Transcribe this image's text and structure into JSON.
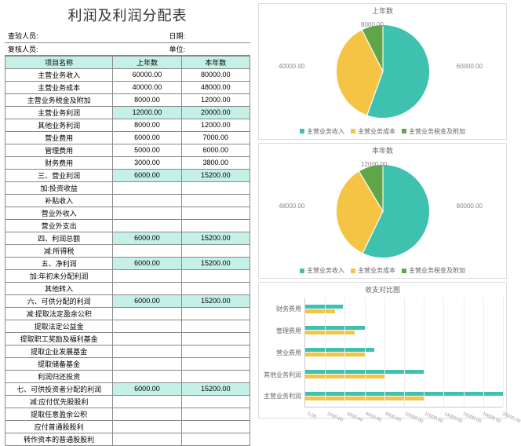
{
  "title": "利润及利润分配表",
  "meta": {
    "inspector_label": "查验人员:",
    "date_label": "日期:",
    "reviewer_label": "复核人员:",
    "unit_label": "单位:"
  },
  "columns": {
    "name": "项目名称",
    "prev": "上年数",
    "curr": "本年数"
  },
  "rows": [
    {
      "label": "主营业务收入",
      "prev": "60000.00",
      "curr": "80000.00"
    },
    {
      "label": "主营业务成本",
      "prev": "40000.00",
      "curr": "48000.00"
    },
    {
      "label": "主营业务税金及附加",
      "prev": "8000.00",
      "curr": "12000.00"
    },
    {
      "label": "主营业务利润",
      "prev": "12000.00",
      "curr": "20000.00",
      "hl": true
    },
    {
      "label": "其他业务利润",
      "prev": "8000.00",
      "curr": "12000.00"
    },
    {
      "label": "营业费用",
      "prev": "6000.00",
      "curr": "7000.00"
    },
    {
      "label": "管理费用",
      "prev": "5000.00",
      "curr": "6000.00"
    },
    {
      "label": "财务费用",
      "prev": "3000.00",
      "curr": "3800.00"
    },
    {
      "label": "三、营业利润",
      "prev": "6000.00",
      "curr": "15200.00",
      "hl": true
    },
    {
      "label": "加:投资收益",
      "prev": "",
      "curr": ""
    },
    {
      "label": "补贴收入",
      "prev": "",
      "curr": ""
    },
    {
      "label": "营业外收入",
      "prev": "",
      "curr": ""
    },
    {
      "label": "营业外支出",
      "prev": "",
      "curr": ""
    },
    {
      "label": "四、利润总额",
      "prev": "6000.00",
      "curr": "15200.00",
      "hl": true
    },
    {
      "label": "减:所得税",
      "prev": "",
      "curr": ""
    },
    {
      "label": "五、净利润",
      "prev": "6000.00",
      "curr": "15200.00",
      "hl": true
    },
    {
      "label": "加:年初未分配利润",
      "prev": "",
      "curr": ""
    },
    {
      "label": "其他转入",
      "prev": "",
      "curr": ""
    },
    {
      "label": "六、可供分配的利润",
      "prev": "6000.00",
      "curr": "15200.00",
      "hl": true
    },
    {
      "label": "减:提取法定盈余公积",
      "prev": "",
      "curr": ""
    },
    {
      "label": "提取法定公益金",
      "prev": "",
      "curr": ""
    },
    {
      "label": "提取职工奖励及福利基金",
      "prev": "",
      "curr": ""
    },
    {
      "label": "提取企业发展基金",
      "prev": "",
      "curr": ""
    },
    {
      "label": "提取储备基金",
      "prev": "",
      "curr": ""
    },
    {
      "label": "利润归还投资",
      "prev": "",
      "curr": ""
    },
    {
      "label": "七、可供投资者分配的利润",
      "prev": "6000.00",
      "curr": "15200.00",
      "hl": true
    },
    {
      "label": "减:应付优先股股利",
      "prev": "",
      "curr": ""
    },
    {
      "label": "提取任意盈余公积",
      "prev": "",
      "curr": ""
    },
    {
      "label": "应付普通股股利",
      "prev": "",
      "curr": ""
    },
    {
      "label": "转作资本的普通股股利",
      "prev": "",
      "curr": ""
    }
  ],
  "colors": {
    "c1": "#3fc1b0",
    "c2": "#f5c444",
    "c3": "#5fa648",
    "highlight": "#c5f0e8",
    "border": "#888888"
  },
  "pie_legend": [
    "主营业务收入",
    "主营业务成本",
    "主营业务税金及附加"
  ],
  "pie1": {
    "title": "上年数",
    "values": [
      60000,
      40000,
      8000
    ],
    "callouts": [
      "60000.00",
      "40000.00",
      "8000.00"
    ]
  },
  "pie2": {
    "title": "本年数",
    "values": [
      80000,
      48000,
      12000
    ],
    "callouts": [
      "80000.00",
      "48000.00",
      "12000.00"
    ]
  },
  "bar": {
    "title": "收支对比图",
    "max": 20000,
    "categories": [
      "财务费用",
      "管理费用",
      "营业费用",
      "其他业务利润",
      "主营业务利润"
    ],
    "series": [
      {
        "color": "#3fc1b0",
        "values": [
          3800,
          6000,
          7000,
          12000,
          20000
        ]
      },
      {
        "color": "#f5c444",
        "values": [
          3000,
          5000,
          6000,
          8000,
          12000
        ]
      }
    ],
    "xticks": [
      "0.00",
      "2000.00",
      "4000.00",
      "6000.00",
      "8000.00",
      "10000.00",
      "12000.00",
      "14000.00",
      "16000.00",
      "18000.00",
      "20000.00"
    ]
  }
}
